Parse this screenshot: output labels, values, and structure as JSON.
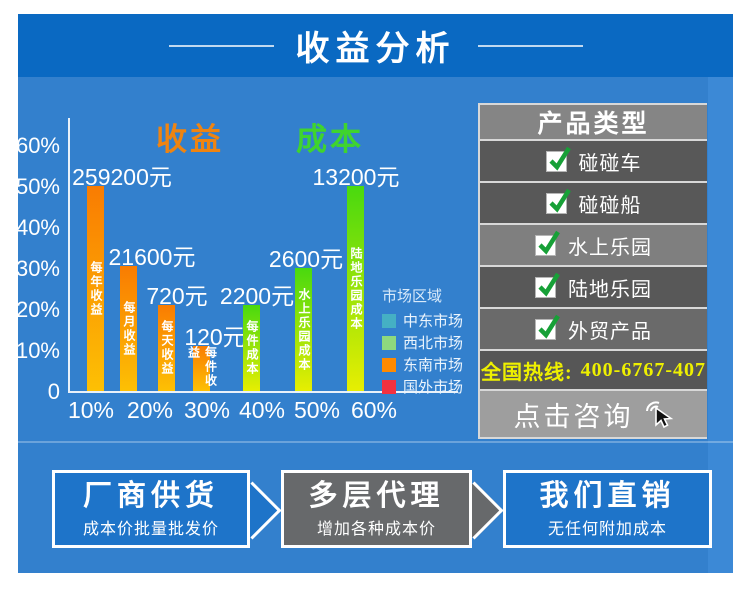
{
  "header": {
    "title": "收益分析"
  },
  "chart_data": {
    "type": "bar",
    "series_labels": {
      "income": "收益",
      "cost": "成本"
    },
    "y_axis": {
      "ticks": [
        "60%",
        "50%",
        "40%",
        "30%",
        "20%",
        "10%",
        "0"
      ],
      "range": [
        0,
        60
      ]
    },
    "x_axis": {
      "ticks": [
        "10%",
        "20%",
        "30%",
        "40%",
        "50%",
        "60%"
      ]
    },
    "bars": [
      {
        "name": "每年收益",
        "value": "259200元",
        "series": "income",
        "height_pct": 50
      },
      {
        "name": "每月收益",
        "value": "21600元",
        "series": "income",
        "height_pct": 30.5
      },
      {
        "name": "每天收益",
        "value": "720元",
        "series": "income",
        "height_pct": 21
      },
      {
        "name": "每件收益",
        "value": "120元",
        "series": "income",
        "height_pct": 11
      },
      {
        "name": "每件成本",
        "value": "2200元",
        "series": "cost",
        "height_pct": 21
      },
      {
        "name": "水上乐园成本",
        "value": "2600元",
        "series": "cost",
        "height_pct": 30
      },
      {
        "name": "陆地乐园成本",
        "value": "13200元",
        "series": "cost",
        "height_pct": 50
      }
    ],
    "legend": {
      "title": "市场区域",
      "items": [
        {
          "label": "中东市场",
          "color": "#45b0c4"
        },
        {
          "label": "西北市场",
          "color": "#8ed97e"
        },
        {
          "label": "东南市场",
          "color": "#ff8a00"
        },
        {
          "label": "国外市场",
          "color": "#f23140"
        }
      ]
    }
  },
  "product_panel": {
    "title": "产品类型",
    "items": [
      {
        "label": "碰碰车",
        "checked": true,
        "variant": "dark"
      },
      {
        "label": "碰碰船",
        "checked": true,
        "variant": "dark"
      },
      {
        "label": "水上乐园",
        "checked": true,
        "variant": "light"
      },
      {
        "label": "陆地乐园",
        "checked": true,
        "variant": "dark"
      },
      {
        "label": "外贸产品",
        "checked": true,
        "variant": "medium"
      }
    ],
    "hotline": {
      "label": "全国热线:",
      "number": "400-6767-407"
    },
    "cta_label": "点击咨询"
  },
  "flow_boxes": [
    {
      "title": "厂商供货",
      "subtitle": "成本价批量批发价",
      "variant": "blue"
    },
    {
      "title": "多层代理",
      "subtitle": "增加各种成本价",
      "variant": "gray"
    },
    {
      "title": "我们直销",
      "subtitle": "无任何附加成本",
      "variant": "blue"
    }
  ],
  "colors": {
    "header_bg": "#0a69c2",
    "body_bg": "#3380cd",
    "accent_strip": "#3c89d6",
    "income_bar_top": "#f97c02",
    "income_bar_bottom": "#fdc004",
    "cost_bar_top": "#49d90f",
    "cost_bar_bottom": "#e7ee02",
    "income_title": "#ef8411",
    "cost_title": "#3fd42e",
    "hotline_text": "#eef000",
    "check_green": "#17a037",
    "panel_header_bg": "#858585",
    "panel_row_dark": "#585858",
    "panel_row_medium": "#6a6a6a",
    "panel_row_light": "#7f7f7f",
    "panel_hotline_bg": "#565656",
    "panel_cta_bg": "#9e9e9e",
    "flow_blue": "#1e74c9",
    "flow_gray": "#67696b"
  }
}
